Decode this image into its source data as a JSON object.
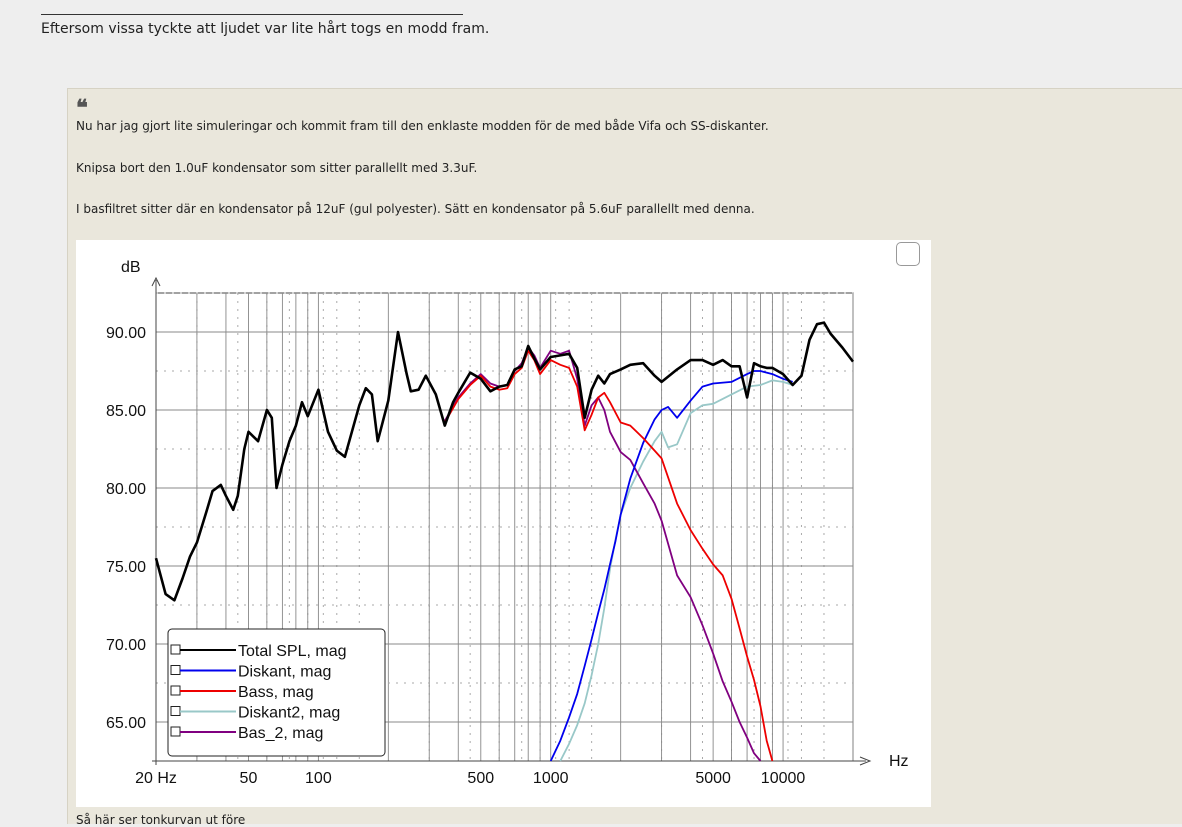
{
  "post": {
    "signature_text": "Eftersom vissa tyckte att ljudet var lite hårt togs en modd fram."
  },
  "quote": {
    "mark": "❝",
    "lines": [
      "Nu har jag gjort lite simuleringar och kommit fram till den enklaste modden för de med både Vifa och SS-diskanter.",
      "Knipsa bort den 1.0uF kondensator som sitter parallellt med 3.3uF.",
      "I basfiltret sitter där en kondensator på 12uF (gul polyester). Sätt en kondensator på 5.6uF parallellt med denna."
    ],
    "after_text": "Så här ser tonkurvan ut före"
  },
  "chart_data": {
    "type": "line",
    "ylabel": "dB",
    "xlabel": "Hz",
    "x_scale": "log",
    "xlim": [
      20,
      20000
    ],
    "ylim": [
      62.5,
      92.5
    ],
    "y_ticks": [
      "90.00",
      "85.00",
      "80.00",
      "75.00",
      "70.00",
      "65.00"
    ],
    "x_ticks": [
      "20 Hz",
      "50",
      "100",
      "500",
      "1000",
      "5000",
      "10000"
    ],
    "series": [
      {
        "name": "Total SPL, mag",
        "color": "#000000",
        "x": [
          20,
          22,
          24,
          26,
          28,
          30,
          33,
          35,
          38,
          40,
          43,
          45,
          48,
          50,
          55,
          60,
          63,
          66,
          70,
          75,
          80,
          85,
          90,
          100,
          110,
          120,
          130,
          140,
          150,
          160,
          170,
          180,
          200,
          220,
          240,
          250,
          270,
          290,
          320,
          350,
          380,
          400,
          450,
          500,
          550,
          600,
          650,
          700,
          750,
          800,
          850,
          900,
          1000,
          1100,
          1200,
          1300,
          1400,
          1500,
          1600,
          1700,
          1800,
          2000,
          2200,
          2500,
          2800,
          3000,
          3500,
          4000,
          4500,
          5000,
          5500,
          6000,
          6500,
          7000,
          7500,
          8000,
          8500,
          9000,
          10000,
          11000,
          12000,
          13000,
          14000,
          15000,
          16000,
          18000,
          20000
        ],
        "y": [
          75.5,
          73.2,
          72.8,
          74.2,
          75.6,
          76.5,
          78.5,
          79.8,
          80.2,
          79.5,
          78.6,
          79.5,
          82.5,
          83.6,
          83.0,
          85.0,
          84.5,
          80.0,
          81.5,
          83.0,
          84.0,
          85.5,
          84.6,
          86.3,
          83.6,
          82.4,
          82.0,
          83.7,
          85.3,
          86.4,
          86.0,
          83.0,
          85.6,
          90.0,
          87.3,
          86.2,
          86.3,
          87.2,
          86.0,
          84.0,
          85.5,
          86.1,
          87.4,
          87.0,
          86.2,
          86.5,
          86.6,
          87.6,
          87.8,
          89.1,
          88.3,
          87.6,
          88.4,
          88.5,
          88.6,
          87.7,
          84.5,
          86.3,
          87.2,
          86.7,
          87.3,
          87.6,
          87.9,
          88.0,
          87.2,
          86.8,
          87.6,
          88.2,
          88.2,
          87.9,
          88.2,
          87.8,
          87.8,
          85.8,
          88.0,
          87.8,
          87.7,
          87.7,
          87.3,
          86.6,
          87.2,
          89.5,
          90.5,
          90.6,
          89.9,
          89.0,
          88.1
        ]
      },
      {
        "name": "Diskant, mag",
        "color": "#0000ee",
        "x": [
          1000,
          1100,
          1200,
          1300,
          1400,
          1500,
          1600,
          1700,
          1800,
          1900,
          2000,
          2200,
          2500,
          2800,
          3000,
          3200,
          3500,
          4000,
          4500,
          5000,
          6000,
          7000,
          7500,
          8000,
          9000,
          10000,
          11000
        ],
        "y": [
          62.3,
          63.8,
          65.3,
          66.8,
          68.6,
          70.3,
          72.0,
          73.5,
          75.1,
          76.6,
          78.3,
          80.6,
          82.9,
          84.4,
          85.0,
          85.2,
          84.5,
          85.6,
          86.5,
          86.7,
          86.8,
          87.3,
          87.5,
          87.5,
          87.3,
          87.0,
          86.8
        ]
      },
      {
        "name": "Bass, mag",
        "color": "#ee0000",
        "x": [
          350,
          400,
          450,
          500,
          550,
          600,
          650,
          700,
          750,
          800,
          850,
          900,
          1000,
          1100,
          1200,
          1300,
          1400,
          1500,
          1600,
          1700,
          1800,
          2000,
          2200,
          2500,
          2800,
          3000,
          3500,
          4000,
          4500,
          5000,
          5500,
          6000,
          6500,
          7000,
          7500,
          8000,
          8500,
          9000
        ],
        "y": [
          84.2,
          85.7,
          86.6,
          87.2,
          86.5,
          86.3,
          86.4,
          87.3,
          87.7,
          88.8,
          88.2,
          87.3,
          88.2,
          87.9,
          87.7,
          86.5,
          83.7,
          84.7,
          85.8,
          86.1,
          85.5,
          84.2,
          84.0,
          83.2,
          82.4,
          81.9,
          79.0,
          77.3,
          76.1,
          75.1,
          74.4,
          72.9,
          71.0,
          69.2,
          67.7,
          66.0,
          63.8,
          62.3
        ]
      },
      {
        "name": "Diskant2, mag",
        "color": "#99c8c8",
        "x": [
          1100,
          1200,
          1300,
          1400,
          1500,
          1600,
          1700,
          1800,
          1900,
          2000,
          2200,
          2500,
          2800,
          3000,
          3200,
          3500,
          4000,
          4500,
          5000,
          6000,
          7000,
          8000,
          9000,
          10000,
          11000
        ],
        "y": [
          62.4,
          63.6,
          64.8,
          66.2,
          68.0,
          70.0,
          72.3,
          74.8,
          76.7,
          78.3,
          80.0,
          81.7,
          83.0,
          83.6,
          82.6,
          82.8,
          84.8,
          85.3,
          85.4,
          86.0,
          86.5,
          86.6,
          86.9,
          86.8,
          86.6
        ]
      },
      {
        "name": "Bas_2, mag",
        "color": "#800080",
        "x": [
          350,
          400,
          450,
          500,
          550,
          600,
          650,
          700,
          750,
          800,
          850,
          900,
          1000,
          1100,
          1200,
          1300,
          1400,
          1500,
          1600,
          1700,
          1800,
          2000,
          2200,
          2500,
          2800,
          3000,
          3500,
          4000,
          4500,
          5000,
          5500,
          6000,
          6500,
          7000,
          7500,
          8000
        ],
        "y": [
          84.3,
          85.8,
          86.7,
          87.3,
          86.7,
          86.5,
          86.6,
          87.5,
          88.0,
          89.0,
          88.5,
          87.7,
          88.8,
          88.6,
          88.8,
          87.0,
          84.0,
          85.3,
          85.8,
          85.0,
          83.6,
          82.3,
          81.8,
          80.3,
          79.0,
          77.9,
          74.4,
          73.0,
          71.2,
          69.4,
          67.6,
          66.3,
          65.0,
          64.0,
          63.0,
          62.4
        ]
      }
    ],
    "legend_position": "bottom-left",
    "grid": true
  }
}
